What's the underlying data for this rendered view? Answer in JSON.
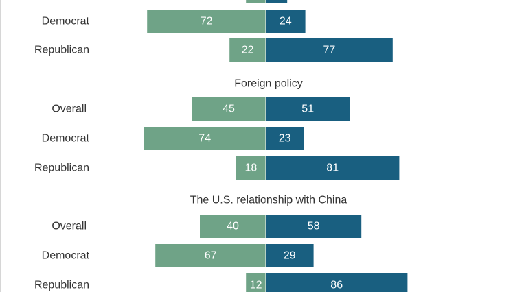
{
  "colors": {
    "left_bar": "#6fa387",
    "right_bar": "#195f80",
    "text": "#333333",
    "label_text": "#ffffff"
  },
  "chart_data": {
    "type": "bar",
    "orientation": "horizontal-diverging",
    "left_series_color": "#6fa387",
    "right_series_color": "#195f80",
    "partial_top_bar": {
      "left": 12,
      "right": 13
    },
    "groups": [
      {
        "title": "",
        "rows": [
          {
            "label": "Democrat",
            "left": 72,
            "right": 24
          },
          {
            "label": "Republican",
            "left": 22,
            "right": 77
          }
        ]
      },
      {
        "title": "Foreign policy",
        "rows": [
          {
            "label": "Overall",
            "left": 45,
            "right": 51
          },
          {
            "label": "Democrat",
            "left": 74,
            "right": 23
          },
          {
            "label": "Republican",
            "left": 18,
            "right": 81
          }
        ]
      },
      {
        "title": "The U.S. relationship with China",
        "rows": [
          {
            "label": "Overall",
            "left": 40,
            "right": 58
          },
          {
            "label": "Democrat",
            "left": 67,
            "right": 29
          },
          {
            "label": "Republican",
            "left": 12,
            "right": 86
          }
        ]
      }
    ]
  }
}
